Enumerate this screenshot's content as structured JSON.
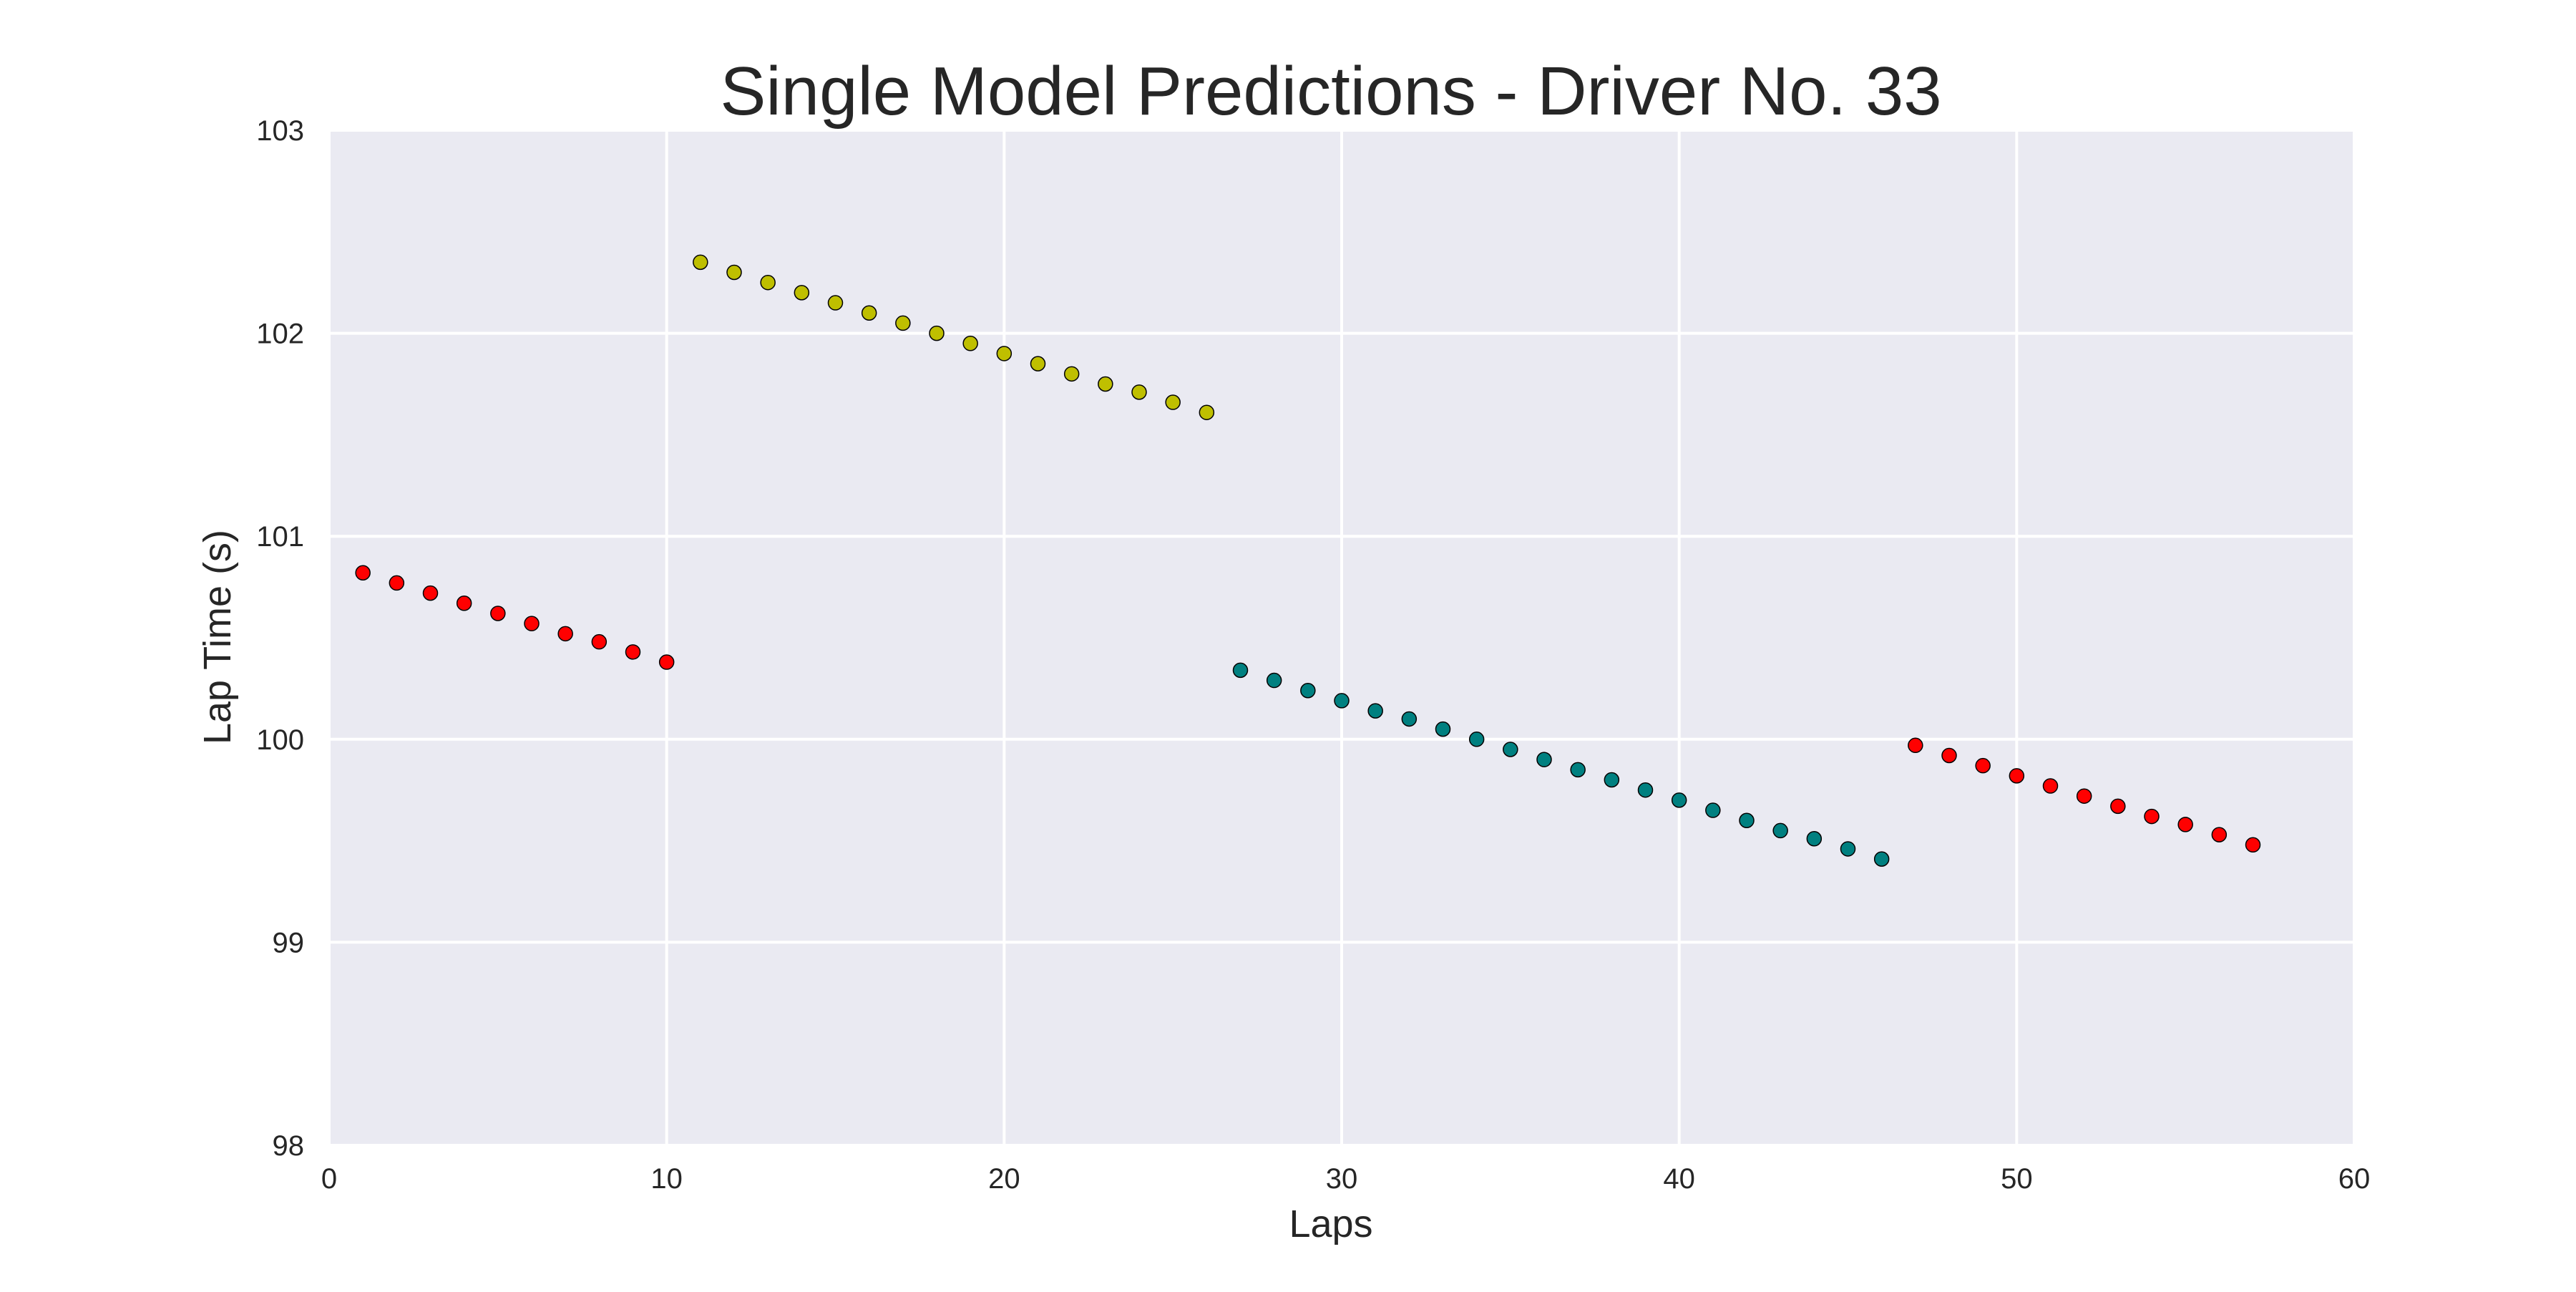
{
  "chart_data": {
    "type": "scatter",
    "title": "Single Model Predictions - Driver No. 33",
    "xlabel": "Laps",
    "ylabel": "Lap Time (s)",
    "xlim": [
      0,
      60
    ],
    "ylim": [
      98,
      103
    ],
    "xticks": [
      0,
      10,
      20,
      30,
      40,
      50,
      60
    ],
    "yticks": [
      98,
      99,
      100,
      101,
      102,
      103
    ],
    "grid": true,
    "plot_background": "#EAEAF2",
    "grid_color": "#FFFFFF",
    "series": [
      {
        "color": "#FF0000",
        "x": [
          1,
          2,
          3,
          4,
          5,
          6,
          7,
          8,
          9,
          10
        ],
        "y": [
          100.82,
          100.77,
          100.72,
          100.67,
          100.62,
          100.57,
          100.52,
          100.48,
          100.43,
          100.38
        ]
      },
      {
        "color": "#BFBF00",
        "x": [
          11,
          12,
          13,
          14,
          15,
          16,
          17,
          18,
          19,
          20,
          21,
          22,
          23,
          24,
          25,
          26
        ],
        "y": [
          102.35,
          102.3,
          102.25,
          102.2,
          102.15,
          102.1,
          102.05,
          102.0,
          101.95,
          101.9,
          101.85,
          101.8,
          101.75,
          101.71,
          101.66,
          101.61
        ]
      },
      {
        "color": "#008080",
        "x": [
          27,
          28,
          29,
          30,
          31,
          32,
          33,
          34,
          35,
          36,
          37,
          38,
          39,
          40,
          41,
          42,
          43,
          44,
          45,
          46
        ],
        "y": [
          100.34,
          100.29,
          100.24,
          100.19,
          100.14,
          100.1,
          100.05,
          100.0,
          99.95,
          99.9,
          99.85,
          99.8,
          99.75,
          99.7,
          99.65,
          99.6,
          99.55,
          99.51,
          99.46,
          99.41
        ]
      },
      {
        "color": "#FF0000",
        "x": [
          47,
          48,
          49,
          50,
          51,
          52,
          53,
          54,
          55,
          56,
          57
        ],
        "y": [
          99.97,
          99.92,
          99.87,
          99.82,
          99.77,
          99.72,
          99.67,
          99.62,
          99.58,
          99.53,
          99.48
        ]
      }
    ]
  }
}
